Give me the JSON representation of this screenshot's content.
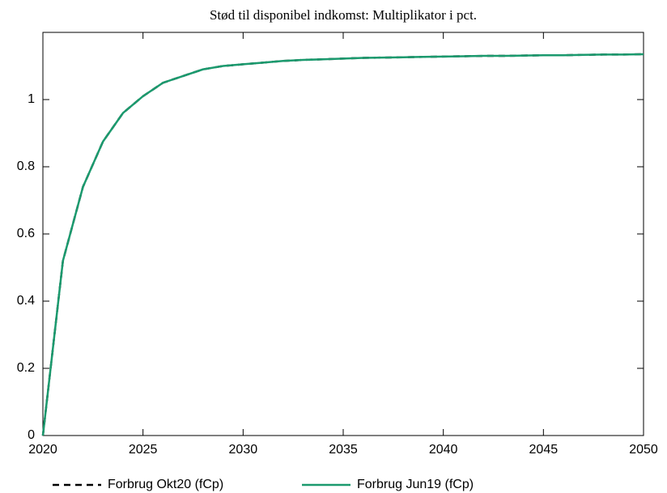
{
  "chart_data": {
    "type": "line",
    "title": "Stød til disponibel indkomst: Multiplikator i pct.",
    "x": [
      2020,
      2021,
      2022,
      2023,
      2024,
      2025,
      2026,
      2027,
      2028,
      2029,
      2030,
      2031,
      2032,
      2033,
      2034,
      2035,
      2036,
      2037,
      2038,
      2039,
      2040,
      2041,
      2042,
      2043,
      2044,
      2045,
      2046,
      2047,
      2048,
      2049,
      2050
    ],
    "series": [
      {
        "name": "Forbrug Okt20 (fCp)",
        "color": "#000000",
        "dashed": true,
        "values": [
          0,
          0.52,
          0.74,
          0.875,
          0.96,
          1.01,
          1.05,
          1.07,
          1.09,
          1.1,
          1.105,
          1.11,
          1.115,
          1.118,
          1.12,
          1.122,
          1.124,
          1.125,
          1.126,
          1.127,
          1.128,
          1.129,
          1.13,
          1.13,
          1.131,
          1.132,
          1.132,
          1.133,
          1.134,
          1.134,
          1.135
        ]
      },
      {
        "name": "Forbrug Jun19 (fCp)",
        "color": "#1b9a6e",
        "dashed": false,
        "values": [
          0,
          0.52,
          0.74,
          0.875,
          0.96,
          1.01,
          1.05,
          1.07,
          1.09,
          1.1,
          1.105,
          1.11,
          1.115,
          1.118,
          1.12,
          1.122,
          1.124,
          1.125,
          1.126,
          1.127,
          1.128,
          1.129,
          1.13,
          1.13,
          1.131,
          1.132,
          1.132,
          1.133,
          1.134,
          1.134,
          1.135
        ]
      }
    ],
    "xlim": [
      2020,
      2050
    ],
    "xticks": [
      2020,
      2025,
      2030,
      2035,
      2040,
      2045,
      2050
    ],
    "ylim": [
      0,
      1.2
    ],
    "yticks": [
      0,
      0.2,
      0.4,
      0.6,
      0.8,
      1
    ],
    "grid": false,
    "legend": "bottom"
  }
}
